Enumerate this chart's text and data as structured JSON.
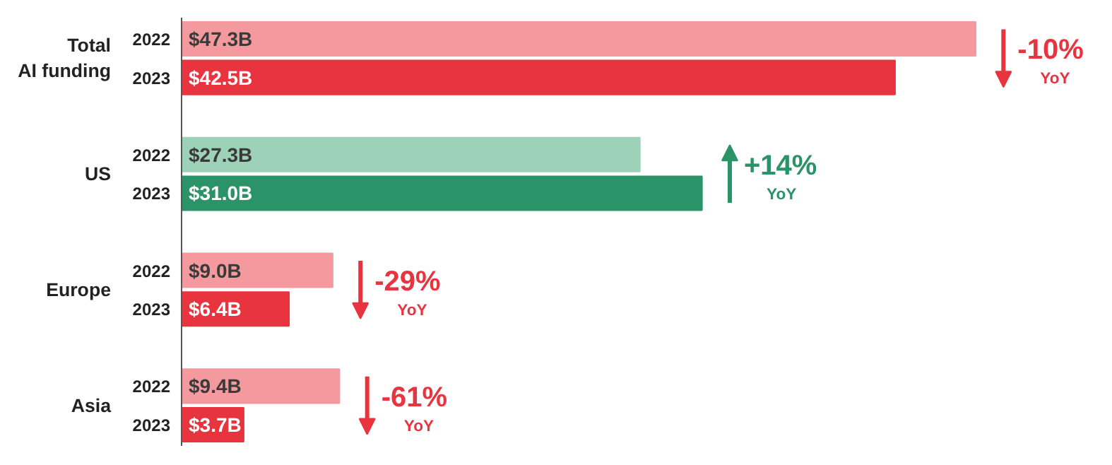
{
  "chart_data": {
    "type": "bar",
    "orientation": "horizontal",
    "categories": [
      "2022",
      "2023",
      "2022",
      "2023",
      "2022",
      "2023",
      "2022",
      "2023"
    ],
    "values": [
      47.3,
      42.5,
      27.3,
      31.0,
      9.0,
      6.4,
      9.4,
      3.7
    ],
    "colors": [
      "#f4999d",
      "#e8343f",
      "#9dd2b8",
      "#2a9468",
      "#f4999d",
      "#e8343f",
      "#f4999d",
      "#e8343f"
    ],
    "value_labels": [
      "$47.3B",
      "$42.5B",
      "$27.3B",
      "$31.0B",
      "$9.0B",
      "$6.4B",
      "$9.4B",
      "$3.7B"
    ],
    "annotations": [
      "Total\nAI funding",
      "-10%",
      "YoY",
      "US",
      "+14%",
      "YoY",
      "Europe",
      "-29%",
      "YoY",
      "Asia",
      "-61%",
      "YoY"
    ]
  }
}
